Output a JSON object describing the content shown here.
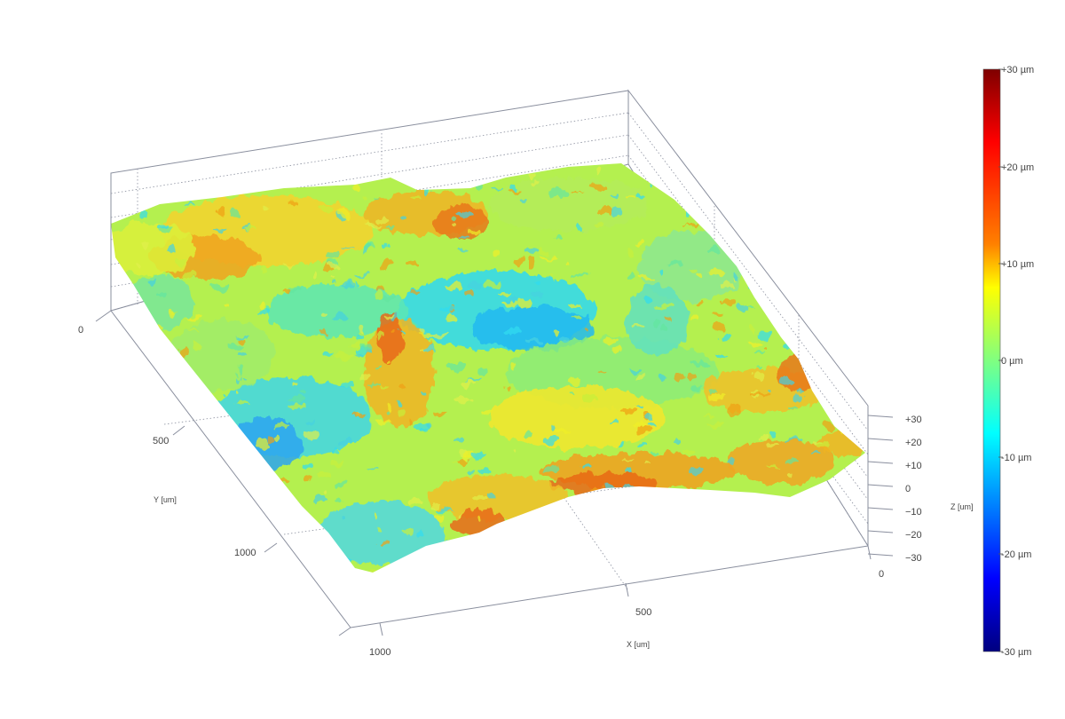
{
  "chart_data": {
    "type": "surface-3d",
    "title": "",
    "x_axis": {
      "label": "X [um]",
      "ticks": [
        "0",
        "500",
        "1000"
      ],
      "range": [
        0,
        1000
      ]
    },
    "y_axis": {
      "label": "Y [um]",
      "ticks": [
        "0",
        "500",
        "1000"
      ],
      "range": [
        0,
        1000
      ]
    },
    "z_axis": {
      "label": "Z [um]",
      "ticks": [
        "+30",
        "+20",
        "+10",
        "0",
        "−10",
        "−20",
        "−30"
      ],
      "range": [
        -30,
        30
      ]
    },
    "colorbar": {
      "labels": [
        "+30 µm",
        "+20 µm",
        "+10 µm",
        "0 µm",
        "-10 µm",
        "-20 µm",
        "-30 µm"
      ],
      "range": [
        -30,
        30
      ],
      "colormap": "jet",
      "stops": [
        "#7f0000",
        "#ff0000",
        "#ff8000",
        "#ffff00",
        "#80ff80",
        "#00ffff",
        "#0080ff",
        "#0000ff",
        "#00007f"
      ]
    },
    "surface": {
      "height_range_um": [
        -15,
        20
      ],
      "dominant_colors": [
        "#c8f03c",
        "#f0f028",
        "#64e6a0",
        "#32dcf0",
        "#f0a014"
      ]
    },
    "grid": true
  }
}
